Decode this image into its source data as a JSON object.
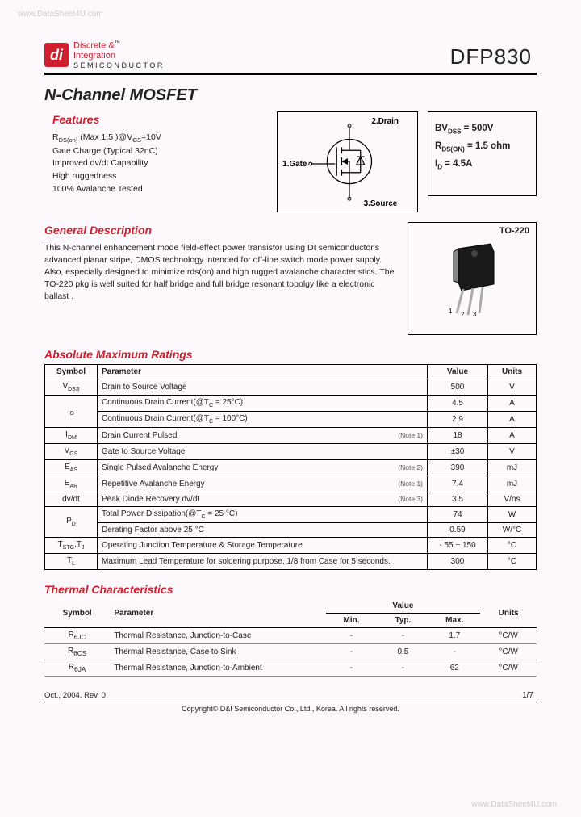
{
  "watermark": {
    "top": "www.DataSheet4U.com",
    "bottom": "www.DataSheet4U.com"
  },
  "logo": {
    "icon_text": "di",
    "line1": "Discrete &",
    "line2": "Integration",
    "line3": "SEMICONDUCTOR",
    "accent_color": "#d02030"
  },
  "part_number": "DFP830",
  "title": "N-Channel MOSFET",
  "sections": {
    "features": "Features",
    "general_desc": "General Description",
    "abs_max": "Absolute Maximum Ratings",
    "thermal": "Thermal Characteristics"
  },
  "features_list": [
    "R<sub>DS(on)</sub> (Max 1.5    )@V<sub>GS</sub>=10V",
    "Gate Charge (Typical 32nC)",
    "Improved dv/dt Capability",
    "High ruggedness",
    "100% Avalanche Tested"
  ],
  "schematic": {
    "pin1": "1.Gate",
    "pin2": "2.Drain",
    "pin3": "3.Source"
  },
  "key_params": {
    "bvdss": "BV<sub>DSS</sub> = 500V",
    "rdson": "R<sub>DS(ON)</sub> = 1.5 ohm",
    "id": "I<sub>D</sub> = 4.5A"
  },
  "description": "This  N-channel enhancement mode field-effect power transistor using DI semiconductor's  advanced planar stripe, DMOS technology intended for off-line switch mode power supply. Also, especially designed  to  minimize  rds(on) and high rugged avalanche characteristics.  The TO-220 pkg  is   well suited   for half  bridge  and  full  bridge resonant  topolgy  like  a  electronic ballast .",
  "package": {
    "label": "TO-220",
    "pins": "1  2  3"
  },
  "amr": {
    "headers": {
      "symbol": "Symbol",
      "parameter": "Parameter",
      "value": "Value",
      "units": "Units"
    },
    "rows": [
      {
        "sym": "V<sub>DSS</sub>",
        "param": "Drain to Source Voltage",
        "note": "",
        "val": "500",
        "unit": "V",
        "rowspan": 1
      },
      {
        "sym": "I<sub>D</sub>",
        "param": "Continuous Drain Current(@T<sub>C</sub> = 25°C)",
        "note": "",
        "val": "4.5",
        "unit": "A",
        "rowspan": 2
      },
      {
        "sym": "",
        "param": "Continuous Drain Current(@T<sub>C</sub> = 100°C)",
        "note": "",
        "val": "2.9",
        "unit": "A",
        "rowspan": 0
      },
      {
        "sym": "I<sub>DM</sub>",
        "param": "Drain Current Pulsed",
        "note": "(Note 1)",
        "val": "18",
        "unit": "A",
        "rowspan": 1
      },
      {
        "sym": "V<sub>GS</sub>",
        "param": "Gate to Source Voltage",
        "note": "",
        "val": "±30",
        "unit": "V",
        "rowspan": 1
      },
      {
        "sym": "E<sub>AS</sub>",
        "param": "Single Pulsed Avalanche Energy",
        "note": "(Note 2)",
        "val": "390",
        "unit": "mJ",
        "rowspan": 1
      },
      {
        "sym": "E<sub>AR</sub>",
        "param": "Repetitive Avalanche Energy",
        "note": "(Note 1)",
        "val": "7.4",
        "unit": "mJ",
        "rowspan": 1
      },
      {
        "sym": "dv/dt",
        "param": "Peak Diode Recovery dv/dt",
        "note": "(Note 3)",
        "val": "3.5",
        "unit": "V/ns",
        "rowspan": 1
      },
      {
        "sym": "P<sub>D</sub>",
        "param": "Total Power Dissipation(@T<sub>C</sub> = 25 °C)",
        "note": "",
        "val": "74",
        "unit": "W",
        "rowspan": 2
      },
      {
        "sym": "",
        "param": "Derating Factor above 25 °C",
        "note": "",
        "val": "0.59",
        "unit": "W/°C",
        "rowspan": 0
      },
      {
        "sym": "T<sub>STG</sub>,T<sub>J</sub>",
        "param": "Operating Junction Temperature & Storage Temperature",
        "note": "",
        "val": "- 55 ~ 150",
        "unit": "°C",
        "rowspan": 1
      },
      {
        "sym": "T<sub>L</sub>",
        "param": "Maximum Lead Temperature for soldering purpose, 1/8 from Case for 5 seconds.",
        "note": "",
        "val": "300",
        "unit": "°C",
        "rowspan": 1
      }
    ]
  },
  "thermal_table": {
    "headers": {
      "symbol": "Symbol",
      "parameter": "Parameter",
      "value": "Value",
      "min": "Min.",
      "typ": "Typ.",
      "max": "Max.",
      "units": "Units"
    },
    "rows": [
      {
        "sym": "R<sub>θJC</sub>",
        "param": "Thermal Resistance, Junction-to-Case",
        "min": "-",
        "typ": "-",
        "max": "1.7",
        "unit": "°C/W"
      },
      {
        "sym": "R<sub>θCS</sub>",
        "param": "Thermal Resistance, Case to Sink",
        "min": "-",
        "typ": "0.5",
        "max": "-",
        "unit": "°C/W"
      },
      {
        "sym": "R<sub>θJA</sub>",
        "param": "Thermal Resistance, Junction-to-Ambient",
        "min": "-",
        "typ": "-",
        "max": "62",
        "unit": "°C/W"
      }
    ]
  },
  "footer": {
    "revision": "Oct.,  2004. Rev. 0",
    "page": "1/7",
    "copyright": "Copyright©  D&I  Semiconductor Co., Ltd., Korea. All rights reserved."
  },
  "colors": {
    "accent": "#d02030",
    "bg": "#fdf8fb",
    "text": "#222222",
    "border": "#000000"
  }
}
